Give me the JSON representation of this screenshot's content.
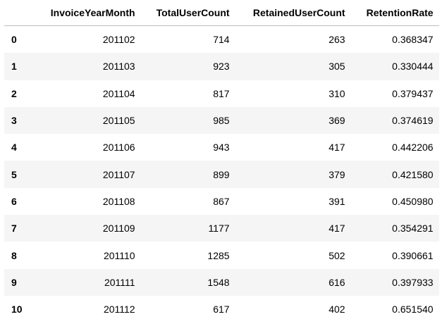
{
  "table": {
    "columns": [
      "InvoiceYearMonth",
      "TotalUserCount",
      "RetainedUserCount",
      "RetentionRate"
    ],
    "rows": [
      [
        "0",
        "201102",
        "714",
        "263",
        "0.368347"
      ],
      [
        "1",
        "201103",
        "923",
        "305",
        "0.330444"
      ],
      [
        "2",
        "201104",
        "817",
        "310",
        "0.379437"
      ],
      [
        "3",
        "201105",
        "985",
        "369",
        "0.374619"
      ],
      [
        "4",
        "201106",
        "943",
        "417",
        "0.442206"
      ],
      [
        "5",
        "201107",
        "899",
        "379",
        "0.421580"
      ],
      [
        "6",
        "201108",
        "867",
        "391",
        "0.450980"
      ],
      [
        "7",
        "201109",
        "1177",
        "417",
        "0.354291"
      ],
      [
        "8",
        "201110",
        "1285",
        "502",
        "0.390661"
      ],
      [
        "9",
        "201111",
        "1548",
        "616",
        "0.397933"
      ],
      [
        "10",
        "201112",
        "617",
        "402",
        "0.651540"
      ]
    ]
  }
}
